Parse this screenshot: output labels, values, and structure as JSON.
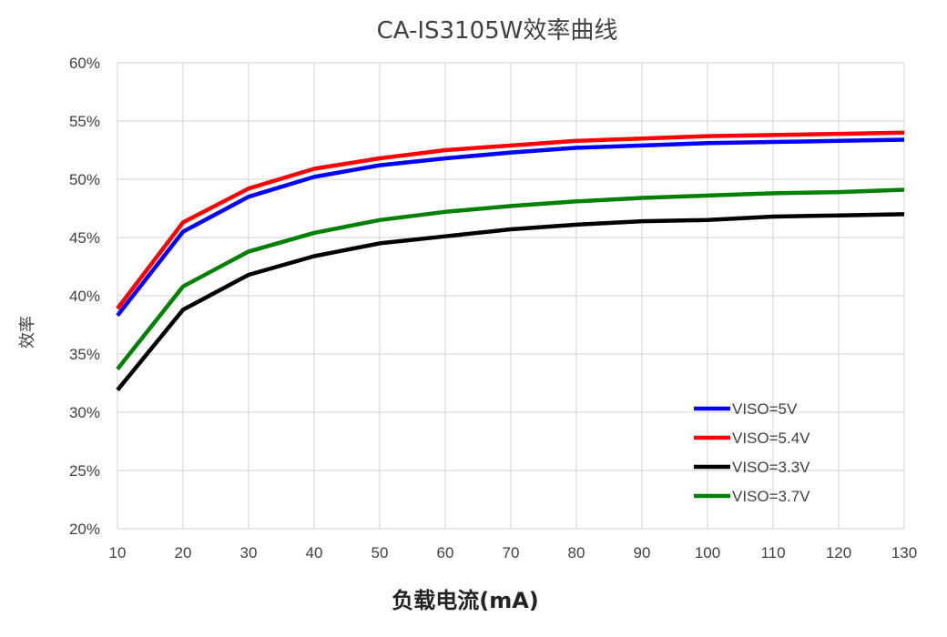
{
  "chart_data": {
    "type": "line",
    "title": "CA-IS3105W效率曲线",
    "xlabel": "负载电流(mA)",
    "ylabel": "效率",
    "x": [
      10,
      20,
      30,
      40,
      50,
      60,
      70,
      80,
      90,
      100,
      110,
      120,
      130
    ],
    "xlim": [
      10,
      130
    ],
    "ylim": [
      20,
      60
    ],
    "yticks": [
      "20%",
      "25%",
      "30%",
      "35%",
      "40%",
      "45%",
      "50%",
      "55%",
      "60%"
    ],
    "yticks_values": [
      20,
      25,
      30,
      35,
      40,
      45,
      50,
      55,
      60
    ],
    "xticks": [
      "10",
      "20",
      "30",
      "40",
      "50",
      "60",
      "70",
      "80",
      "90",
      "100",
      "110",
      "120",
      "130"
    ],
    "grid": true,
    "legend_position": "bottom-right",
    "series": [
      {
        "name": "VISO=5V",
        "color": "#0000ff",
        "values": [
          38.3,
          45.5,
          48.5,
          50.2,
          51.2,
          51.8,
          52.3,
          52.7,
          52.9,
          53.1,
          53.2,
          53.3,
          53.4
        ]
      },
      {
        "name": "VISO=5.4V",
        "color": "#ff0000",
        "values": [
          38.9,
          46.3,
          49.2,
          50.9,
          51.8,
          52.5,
          52.9,
          53.3,
          53.5,
          53.7,
          53.8,
          53.9,
          54.0
        ]
      },
      {
        "name": "VISO=3.3V",
        "color": "#000000",
        "values": [
          31.9,
          38.8,
          41.8,
          43.4,
          44.5,
          45.1,
          45.7,
          46.1,
          46.4,
          46.5,
          46.8,
          46.9,
          47.0
        ]
      },
      {
        "name": "VISO=3.7V",
        "color": "#008000",
        "values": [
          33.7,
          40.8,
          43.8,
          45.4,
          46.5,
          47.2,
          47.7,
          48.1,
          48.4,
          48.6,
          48.8,
          48.9,
          49.1
        ]
      }
    ]
  }
}
